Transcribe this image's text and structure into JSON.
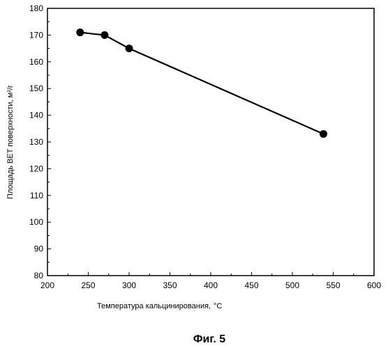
{
  "chart_data": {
    "type": "line",
    "title": "",
    "xlabel": "Температура кальцинирования,",
    "xlabel_unit": "°C",
    "ylabel": "Площадь BET поверхности, м²/г",
    "xlim": [
      200,
      600
    ],
    "ylim": [
      80,
      180
    ],
    "x_ticks": [
      200,
      250,
      300,
      350,
      400,
      450,
      500,
      550,
      600
    ],
    "y_ticks": [
      80,
      90,
      100,
      110,
      120,
      130,
      140,
      150,
      160,
      170,
      180
    ],
    "grid": false,
    "series": [
      {
        "x": [
          240,
          270,
          300,
          538
        ],
        "values": [
          171,
          170,
          165,
          133
        ],
        "color": "#000000",
        "marker": "circle"
      }
    ]
  },
  "caption": "Фиг. 5"
}
